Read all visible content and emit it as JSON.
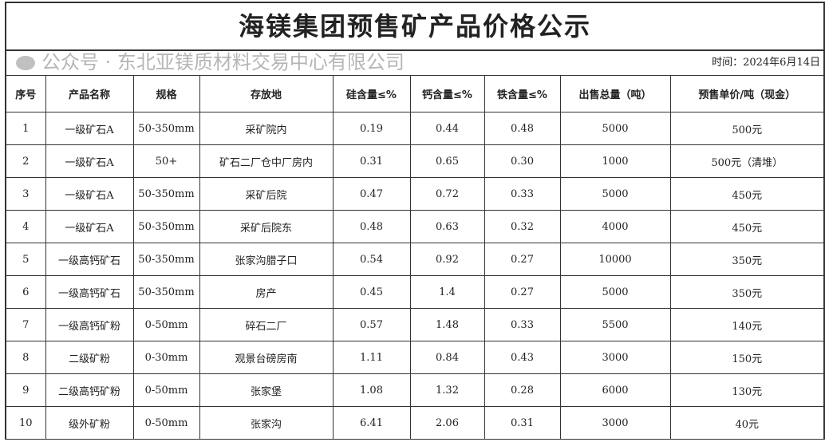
{
  "title": "海镁集团预售矿产品价格公示",
  "date": "时间：2024年6月14日",
  "headers": [
    "序号",
    "产品名称",
    "规格",
    "存放地",
    "硅含量≤%",
    "钙含量≤%",
    "铁含量≤%",
    "出售总量（吨）",
    "预售单价/吨（现金）"
  ],
  "rows": [
    [
      "1",
      "一级矿石A",
      "50-350mm",
      "采矿院内",
      "0.19",
      "0.44",
      "0.48",
      "5000",
      "500元"
    ],
    [
      "2",
      "一级矿石A",
      "50+",
      "矿石二厂仓中厂房内",
      "0.31",
      "0.65",
      "0.30",
      "1000",
      "500元（清堆）"
    ],
    [
      "3",
      "一级矿石A",
      "50-350mm",
      "采矿后院",
      "0.47",
      "0.72",
      "0.33",
      "5000",
      "450元"
    ],
    [
      "4",
      "一级矿石A",
      "50-350mm",
      "采矿后院东",
      "0.48",
      "0.63",
      "0.32",
      "4000",
      "450元"
    ],
    [
      "5",
      "一级高钙矿石",
      "50-350mm",
      "张家沟腊子口",
      "0.54",
      "0.92",
      "0.27",
      "10000",
      "350元"
    ],
    [
      "6",
      "一级高钙矿石",
      "50-350mm",
      "房产",
      "0.45",
      "1.4",
      "0.27",
      "5000",
      "350元"
    ],
    [
      "7",
      "一级高钙矿粉",
      "0-50mm",
      "碎石二厂",
      "0.57",
      "1.48",
      "0.33",
      "5500",
      "140元"
    ],
    [
      "8",
      "二级矿粉",
      "0-30mm",
      "观景台磅房南",
      "1.11",
      "0.84",
      "0.43",
      "3000",
      "150元"
    ],
    [
      "9",
      "二级高钙矿粉",
      "0-50mm",
      "张家堡",
      "1.08",
      "1.32",
      "0.28",
      "6000",
      "130元"
    ],
    [
      "10",
      "级外矿粉",
      "0-50mm",
      "张家沟",
      "6.41",
      "2.06",
      "0.31",
      "3000",
      "40元"
    ]
  ],
  "watermark": "公众号 · 东北亚镁质材料交易中心有限公司"
}
